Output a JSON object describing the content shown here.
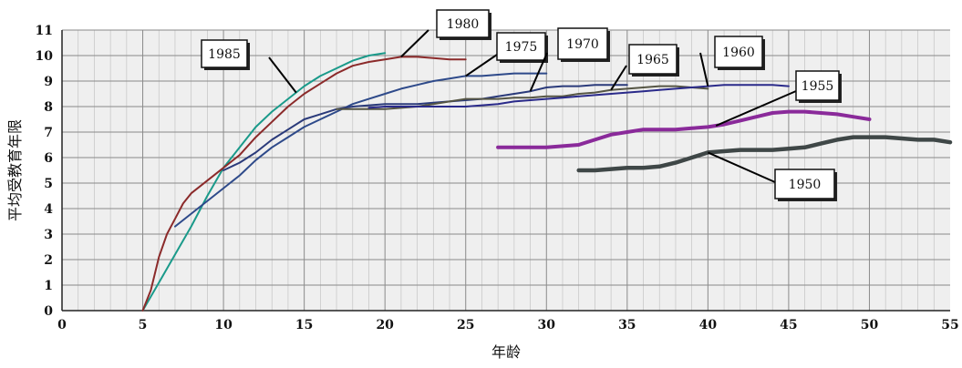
{
  "chart_data": {
    "type": "line",
    "xlabel": "年龄",
    "ylabel": "平均受教育年限",
    "xlim": [
      0,
      55
    ],
    "ylim": [
      0,
      11
    ],
    "x_ticks": [
      "0",
      "5",
      "10",
      "15",
      "20",
      "25",
      "30",
      "35",
      "40",
      "45",
      "50",
      "55"
    ],
    "y_ticks": [
      "0",
      "1",
      "2",
      "3",
      "4",
      "5",
      "6",
      "7",
      "8",
      "9",
      "10",
      "11"
    ],
    "grid": true,
    "legend": "callout labels",
    "series": [
      {
        "name": "1985",
        "color": "#1a9a8a",
        "x": [
          5,
          6,
          7,
          8,
          9,
          10,
          11,
          12,
          13,
          14,
          15,
          16,
          17,
          18,
          19,
          20
        ],
        "y": [
          0,
          1.1,
          2.2,
          3.3,
          4.5,
          5.6,
          6.4,
          7.2,
          7.8,
          8.3,
          8.8,
          9.2,
          9.5,
          9.8,
          10.0,
          10.1
        ]
      },
      {
        "name": "1980",
        "color": "#8b2a2a",
        "x": [
          5,
          5.5,
          6,
          6.5,
          7,
          7.5,
          8,
          9,
          10,
          11,
          12,
          13,
          14,
          15,
          16,
          17,
          18,
          19,
          20,
          21,
          22,
          23,
          24,
          25
        ],
        "y": [
          0,
          0.8,
          2.1,
          3.0,
          3.6,
          4.2,
          4.6,
          5.1,
          5.6,
          6.1,
          6.8,
          7.4,
          8.0,
          8.5,
          8.9,
          9.3,
          9.6,
          9.75,
          9.85,
          9.95,
          9.95,
          9.9,
          9.85,
          9.85
        ]
      },
      {
        "name": "1975",
        "color": "#2e4a8a",
        "x": [
          7,
          8,
          9,
          10,
          11,
          12,
          13,
          14,
          15,
          16,
          17,
          18,
          19,
          20,
          21,
          22,
          23,
          24,
          25,
          26,
          27,
          28,
          29,
          30
        ],
        "y": [
          3.3,
          3.8,
          4.3,
          4.8,
          5.3,
          5.9,
          6.4,
          6.8,
          7.2,
          7.5,
          7.8,
          8.1,
          8.3,
          8.5,
          8.7,
          8.85,
          9.0,
          9.1,
          9.2,
          9.2,
          9.25,
          9.3,
          9.3,
          9.3
        ]
      },
      {
        "name": "1970",
        "color": "#2a3a7a",
        "x": [
          10,
          11,
          12,
          13,
          14,
          15,
          16,
          17,
          18,
          19,
          20,
          21,
          22,
          23,
          24,
          25,
          26,
          27,
          28,
          29,
          30,
          31,
          32,
          33,
          34,
          35
        ],
        "y": [
          5.5,
          5.8,
          6.2,
          6.7,
          7.1,
          7.5,
          7.7,
          7.9,
          8.0,
          8.05,
          8.1,
          8.1,
          8.1,
          8.15,
          8.2,
          8.25,
          8.3,
          8.4,
          8.5,
          8.6,
          8.75,
          8.8,
          8.8,
          8.85,
          8.85,
          8.85
        ]
      },
      {
        "name": "1965",
        "color": "#555544",
        "x": [
          17,
          18,
          19,
          20,
          21,
          22,
          23,
          24,
          25,
          26,
          27,
          28,
          29,
          30,
          31,
          32,
          33,
          34,
          35,
          36,
          37,
          38,
          39,
          40
        ],
        "y": [
          7.9,
          7.9,
          7.9,
          7.9,
          7.95,
          8.0,
          8.1,
          8.2,
          8.3,
          8.3,
          8.3,
          8.35,
          8.35,
          8.4,
          8.4,
          8.5,
          8.55,
          8.65,
          8.7,
          8.75,
          8.8,
          8.8,
          8.75,
          8.7
        ]
      },
      {
        "name": "1960",
        "color": "#2a2a8a",
        "x": [
          19,
          20,
          21,
          22,
          23,
          24,
          25,
          26,
          27,
          28,
          29,
          30,
          31,
          32,
          33,
          34,
          35,
          36,
          37,
          38,
          39,
          40,
          41,
          42,
          43,
          44,
          45
        ],
        "y": [
          7.95,
          8.0,
          8.0,
          8.0,
          8.0,
          8.0,
          8.0,
          8.05,
          8.1,
          8.2,
          8.25,
          8.3,
          8.35,
          8.4,
          8.45,
          8.5,
          8.55,
          8.6,
          8.65,
          8.7,
          8.75,
          8.8,
          8.85,
          8.85,
          8.85,
          8.85,
          8.8
        ]
      },
      {
        "name": "1955",
        "color": "#8a2a9a",
        "x": [
          27,
          28,
          29,
          30,
          31,
          32,
          33,
          34,
          35,
          36,
          37,
          38,
          39,
          40,
          41,
          42,
          43,
          44,
          45,
          46,
          47,
          48,
          49,
          50
        ],
        "y": [
          6.4,
          6.4,
          6.4,
          6.4,
          6.45,
          6.5,
          6.7,
          6.9,
          7.0,
          7.1,
          7.1,
          7.1,
          7.15,
          7.2,
          7.3,
          7.45,
          7.6,
          7.75,
          7.8,
          7.8,
          7.75,
          7.7,
          7.6,
          7.5
        ]
      },
      {
        "name": "1950",
        "color": "#3f4747",
        "x": [
          32,
          33,
          34,
          35,
          36,
          37,
          38,
          39,
          40,
          41,
          42,
          43,
          44,
          45,
          46,
          47,
          48,
          49,
          50,
          51,
          52,
          53,
          54,
          55
        ],
        "y": [
          5.5,
          5.5,
          5.55,
          5.6,
          5.6,
          5.65,
          5.8,
          6.0,
          6.2,
          6.25,
          6.3,
          6.3,
          6.3,
          6.35,
          6.4,
          6.55,
          6.7,
          6.8,
          6.8,
          6.8,
          6.75,
          6.7,
          6.7,
          6.6
        ]
      }
    ],
    "callouts": [
      {
        "text": "1985",
        "series": "1985"
      },
      {
        "text": "1980",
        "series": "1980"
      },
      {
        "text": "1975",
        "series": "1975"
      },
      {
        "text": "1970",
        "series": "1970"
      },
      {
        "text": "1965",
        "series": "1965"
      },
      {
        "text": "1960",
        "series": "1960"
      },
      {
        "text": "1955",
        "series": "1955"
      },
      {
        "text": "1950",
        "series": "1950"
      }
    ]
  }
}
